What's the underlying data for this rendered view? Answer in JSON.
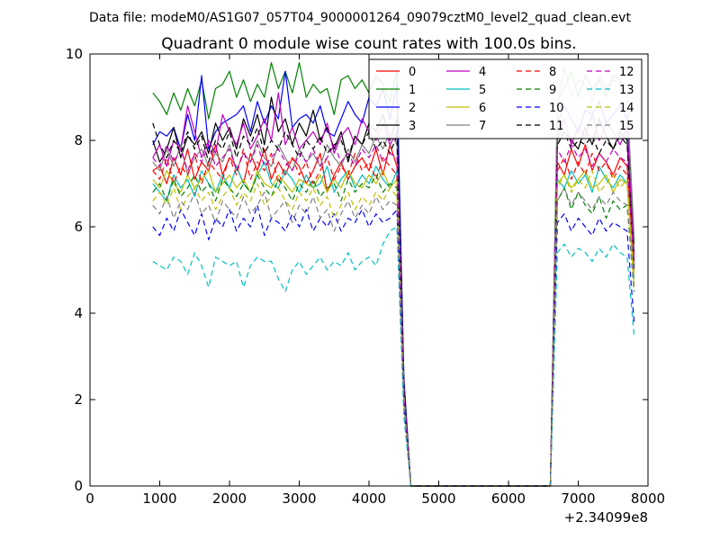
{
  "figure": {
    "suptitle": "Data file: modeM0/AS1G07_057T04_9000001264_09079cztM0_level2_quad_clean.evt",
    "title": "Quadrant 0 module wise count rates with 100.0s bins.",
    "x_offset_label": "+2.34099e8"
  },
  "chart_data": {
    "type": "line",
    "title": "Quadrant 0 module wise count rates with 100.0s bins.",
    "xlabel": "",
    "ylabel": "",
    "xlim": [
      0,
      8000
    ],
    "ylim": [
      0,
      10
    ],
    "x_offset": 234099000,
    "xticks": [
      0,
      1000,
      2000,
      3000,
      4000,
      5000,
      6000,
      7000,
      8000
    ],
    "yticks": [
      0,
      2,
      4,
      6,
      8,
      10
    ],
    "grid": false,
    "legend_position": "top-right",
    "x": [
      900,
      1000,
      1100,
      1200,
      1300,
      1400,
      1500,
      1600,
      1700,
      1800,
      1900,
      2000,
      2100,
      2200,
      2300,
      2400,
      2500,
      2600,
      2700,
      2800,
      2900,
      3000,
      3100,
      3200,
      3300,
      3400,
      3500,
      3600,
      3700,
      3800,
      3900,
      4000,
      4100,
      4200,
      4300,
      4400,
      4500,
      4600,
      4700,
      4800,
      4900,
      5000,
      5100,
      5200,
      5300,
      5400,
      5500,
      5600,
      5700,
      5800,
      5900,
      6000,
      6100,
      6200,
      6300,
      6400,
      6500,
      6600,
      6700,
      6800,
      6900,
      7000,
      7100,
      7200,
      7300,
      7400,
      7500,
      7600,
      7700,
      7800
    ],
    "series": [
      {
        "name": "0",
        "color": "#ff0000",
        "dash": "solid",
        "values": [
          7.3,
          7.4,
          7.0,
          7.6,
          7.2,
          7.8,
          7.1,
          7.5,
          7.3,
          7.9,
          7.2,
          7.6,
          7.4,
          7.0,
          7.7,
          7.3,
          7.8,
          7.1,
          7.5,
          7.2,
          7.6,
          7.4,
          7.0,
          7.3,
          7.7,
          6.8,
          7.2,
          7.5,
          7.1,
          7.4,
          7.6,
          7.3,
          7.8,
          7.2,
          7.9,
          7.4,
          2.0,
          0,
          0,
          0,
          0,
          0,
          0,
          0,
          0,
          0,
          0,
          0,
          0,
          0,
          0,
          0,
          0,
          0,
          0,
          0,
          0,
          0,
          7.5,
          7.2,
          7.8,
          7.4,
          7.9,
          7.3,
          7.7,
          7.5,
          7.2,
          7.6,
          7.4,
          5.2
        ]
      },
      {
        "name": "1",
        "color": "#008000",
        "dash": "solid",
        "values": [
          9.1,
          8.9,
          8.6,
          9.1,
          8.7,
          9.2,
          8.8,
          9.4,
          8.5,
          9.2,
          9.3,
          9.6,
          9.0,
          9.4,
          8.9,
          9.3,
          9.0,
          9.8,
          9.2,
          9.6,
          9.1,
          9.8,
          9.0,
          9.3,
          9.1,
          9.2,
          8.6,
          9.4,
          9.5,
          9.2,
          9.4,
          9.1,
          9.5,
          9.3,
          8.9,
          9.6,
          2.4,
          0,
          0,
          0,
          0,
          0,
          0,
          0,
          0,
          0,
          0,
          0,
          0,
          0,
          0,
          0,
          0,
          0,
          0,
          0,
          0,
          0,
          8.9,
          9.2,
          9.6,
          9.0,
          9.5,
          9.2,
          9.4,
          9.0,
          9.5,
          9.4,
          9.0,
          5.6
        ]
      },
      {
        "name": "2",
        "color": "#0000ff",
        "dash": "solid",
        "values": [
          7.9,
          8.2,
          8.1,
          8.3,
          7.8,
          8.6,
          8.0,
          9.5,
          7.8,
          8.2,
          8.4,
          8.5,
          8.6,
          8.8,
          8.2,
          8.9,
          8.4,
          8.8,
          8.5,
          9.6,
          8.3,
          8.5,
          8.6,
          8.4,
          8.8,
          8.2,
          8.1,
          8.5,
          8.9,
          8.6,
          8.4,
          9.0,
          8.8,
          9.2,
          8.5,
          9.3,
          2.5,
          0,
          0,
          0,
          0,
          0,
          0,
          0,
          0,
          0,
          0,
          0,
          0,
          0,
          0,
          0,
          0,
          0,
          0,
          0,
          0,
          0,
          8.4,
          8.8,
          8.5,
          8.2,
          8.7,
          8.6,
          8.9,
          8.4,
          8.6,
          8.8,
          8.5,
          5.0
        ]
      },
      {
        "name": "3",
        "color": "#000000",
        "dash": "solid",
        "values": [
          8.0,
          7.5,
          7.8,
          8.3,
          7.6,
          8.1,
          7.9,
          8.2,
          7.7,
          8.4,
          8.0,
          8.3,
          7.8,
          8.5,
          8.1,
          8.6,
          7.9,
          9.0,
          8.2,
          8.5,
          7.9,
          8.4,
          8.1,
          8.7,
          8.0,
          8.3,
          7.8,
          8.2,
          7.5,
          8.1,
          7.9,
          8.4,
          8.2,
          8.6,
          8.0,
          8.5,
          2.3,
          0,
          0,
          0,
          0,
          0,
          0,
          0,
          0,
          0,
          0,
          0,
          0,
          0,
          0,
          0,
          0,
          0,
          0,
          0,
          0,
          0,
          7.9,
          8.2,
          8.0,
          7.8,
          8.3,
          7.9,
          8.5,
          8.1,
          7.8,
          8.2,
          8.0,
          5.4
        ]
      },
      {
        "name": "4",
        "color": "#bf00bf",
        "dash": "solid",
        "values": [
          7.6,
          7.9,
          7.4,
          8.0,
          7.8,
          8.8,
          8.2,
          7.6,
          8.0,
          7.7,
          8.6,
          8.2,
          7.9,
          8.4,
          7.8,
          8.1,
          8.5,
          8.0,
          9.1,
          7.9,
          8.3,
          7.8,
          8.0,
          8.2,
          7.9,
          8.4,
          7.7,
          8.1,
          8.3,
          7.9,
          8.5,
          8.2,
          8.0,
          8.4,
          7.9,
          8.2,
          2.2,
          0,
          0,
          0,
          0,
          0,
          0,
          0,
          0,
          0,
          0,
          0,
          0,
          0,
          0,
          0,
          0,
          0,
          0,
          0,
          0,
          0,
          8.0,
          8.5,
          7.9,
          8.3,
          8.1,
          8.6,
          8.0,
          8.4,
          8.2,
          7.9,
          8.3,
          5.3
        ]
      },
      {
        "name": "5",
        "color": "#00bfbf",
        "dash": "solid",
        "values": [
          7.0,
          6.8,
          6.6,
          7.2,
          6.9,
          7.1,
          6.7,
          7.3,
          7.0,
          6.8,
          7.2,
          6.9,
          7.4,
          7.0,
          6.8,
          7.2,
          7.5,
          7.0,
          6.9,
          7.3,
          7.1,
          6.8,
          7.2,
          6.9,
          7.0,
          7.4,
          6.8,
          7.1,
          7.3,
          6.9,
          7.2,
          7.0,
          7.4,
          7.1,
          6.9,
          7.3,
          2.1,
          0,
          0,
          0,
          0,
          0,
          0,
          0,
          0,
          0,
          0,
          0,
          0,
          0,
          0,
          0,
          0,
          0,
          0,
          0,
          0,
          0,
          7.1,
          6.9,
          7.3,
          7.0,
          7.2,
          6.8,
          7.4,
          7.1,
          6.9,
          7.2,
          7.0,
          4.8
        ]
      },
      {
        "name": "6",
        "color": "#bfbf00",
        "dash": "solid",
        "values": [
          7.1,
          6.9,
          7.3,
          7.0,
          6.8,
          7.2,
          6.9,
          7.1,
          7.3,
          6.8,
          7.0,
          7.2,
          6.9,
          7.1,
          6.8,
          7.3,
          7.0,
          6.9,
          7.2,
          7.0,
          6.8,
          7.1,
          7.0,
          6.9,
          7.2,
          6.8,
          7.1,
          6.9,
          7.3,
          7.0,
          6.9,
          7.2,
          7.0,
          7.3,
          6.9,
          7.1,
          2.0,
          0,
          0,
          0,
          0,
          0,
          0,
          0,
          0,
          0,
          0,
          0,
          0,
          0,
          0,
          0,
          0,
          0,
          0,
          0,
          0,
          0,
          7.0,
          7.2,
          6.9,
          7.1,
          7.3,
          6.9,
          7.0,
          7.2,
          6.8,
          7.1,
          7.0,
          4.6
        ]
      },
      {
        "name": "7",
        "color": "#808080",
        "dash": "solid",
        "values": [
          7.5,
          7.3,
          7.8,
          7.4,
          7.9,
          7.2,
          7.6,
          7.8,
          7.4,
          7.7,
          7.5,
          7.9,
          7.3,
          7.7,
          7.5,
          8.0,
          7.6,
          7.4,
          7.9,
          7.6,
          7.3,
          7.8,
          7.5,
          7.7,
          7.4,
          7.9,
          7.6,
          7.4,
          7.8,
          7.5,
          7.9,
          7.7,
          8.1,
          7.8,
          8.2,
          7.9,
          2.2,
          0,
          0,
          0,
          0,
          0,
          0,
          0,
          0,
          0,
          0,
          0,
          0,
          0,
          0,
          0,
          0,
          0,
          0,
          0,
          0,
          0,
          8.8,
          9.7,
          9.0,
          9.4,
          9.3,
          8.9,
          9.5,
          9.2,
          9.4,
          9.3,
          9.0,
          5.8
        ]
      },
      {
        "name": "8",
        "color": "#ff0000",
        "dash": "dash",
        "values": [
          7.3,
          7.1,
          7.6,
          7.0,
          7.4,
          7.2,
          7.7,
          7.0,
          7.5,
          7.3,
          7.1,
          7.6,
          7.2,
          7.8,
          7.1,
          7.5,
          7.3,
          7.7,
          7.0,
          7.4,
          7.6,
          7.2,
          7.5,
          7.0,
          7.3,
          7.6,
          7.1,
          7.4,
          7.2,
          7.7,
          7.3,
          7.5,
          7.1,
          7.6,
          7.4,
          7.2,
          2.1,
          0,
          0,
          0,
          0,
          0,
          0,
          0,
          0,
          0,
          0,
          0,
          0,
          0,
          0,
          0,
          0,
          0,
          0,
          0,
          0,
          0,
          7.3,
          7.6,
          7.1,
          7.5,
          7.2,
          7.7,
          7.3,
          7.5,
          7.1,
          7.4,
          7.2,
          5.0
        ]
      },
      {
        "name": "9",
        "color": "#008000",
        "dash": "dash",
        "values": [
          6.8,
          7.0,
          6.6,
          7.1,
          6.7,
          6.9,
          7.2,
          6.8,
          7.0,
          6.6,
          7.1,
          6.9,
          6.7,
          7.0,
          6.8,
          7.2,
          6.9,
          6.7,
          7.1,
          6.9,
          6.6,
          7.0,
          6.8,
          7.1,
          6.7,
          6.9,
          7.0,
          6.6,
          7.1,
          6.8,
          7.0,
          6.9,
          7.2,
          6.8,
          7.0,
          6.9,
          2.0,
          0,
          0,
          0,
          0,
          0,
          0,
          0,
          0,
          0,
          0,
          0,
          0,
          0,
          0,
          0,
          0,
          0,
          0,
          0,
          0,
          0,
          6.6,
          6.9,
          6.4,
          6.8,
          6.5,
          6.3,
          6.7,
          6.2,
          6.6,
          6.4,
          6.5,
          4.5
        ]
      },
      {
        "name": "10",
        "color": "#0000ff",
        "dash": "dash",
        "values": [
          6.0,
          5.8,
          6.2,
          5.9,
          6.4,
          6.1,
          5.8,
          6.3,
          5.7,
          6.2,
          6.0,
          6.4,
          5.9,
          6.2,
          6.0,
          6.5,
          5.8,
          6.2,
          6.1,
          5.9,
          6.3,
          6.0,
          6.4,
          5.9,
          6.2,
          6.0,
          6.3,
          5.9,
          6.2,
          6.1,
          6.4,
          6.0,
          6.3,
          6.1,
          6.2,
          6.4,
          1.8,
          0,
          0,
          0,
          0,
          0,
          0,
          0,
          0,
          0,
          0,
          0,
          0,
          0,
          0,
          0,
          0,
          0,
          0,
          0,
          0,
          0,
          6.1,
          6.3,
          5.9,
          6.2,
          6.0,
          5.8,
          6.2,
          5.9,
          6.1,
          6.0,
          5.9,
          3.8
        ]
      },
      {
        "name": "11",
        "color": "#000000",
        "dash": "dash",
        "values": [
          8.4,
          7.9,
          7.6,
          8.0,
          7.7,
          8.2,
          7.8,
          8.1,
          7.5,
          8.0,
          7.8,
          8.2,
          7.6,
          8.1,
          7.9,
          8.3,
          7.7,
          8.0,
          7.8,
          8.2,
          7.9,
          7.6,
          8.0,
          7.8,
          8.1,
          7.7,
          7.9,
          8.0,
          7.6,
          8.1,
          7.9,
          8.2,
          7.8,
          8.0,
          7.7,
          8.1,
          2.2,
          0,
          0,
          0,
          0,
          0,
          0,
          0,
          0,
          0,
          0,
          0,
          0,
          0,
          0,
          0,
          0,
          0,
          0,
          0,
          0,
          0,
          7.9,
          8.2,
          7.8,
          8.0,
          7.9,
          8.1,
          7.7,
          8.0,
          7.8,
          8.1,
          7.9,
          5.1
        ]
      },
      {
        "name": "12",
        "color": "#bf00bf",
        "dash": "dash",
        "values": [
          7.6,
          7.4,
          7.9,
          7.5,
          7.8,
          7.3,
          7.7,
          7.5,
          7.9,
          7.4,
          7.6,
          7.8,
          7.3,
          7.7,
          7.5,
          7.9,
          7.4,
          7.6,
          7.8,
          7.5,
          7.3,
          7.7,
          7.5,
          7.8,
          7.4,
          7.6,
          7.9,
          7.5,
          7.7,
          7.4,
          7.8,
          7.6,
          7.9,
          7.5,
          7.7,
          7.6,
          2.1,
          0,
          0,
          0,
          0,
          0,
          0,
          0,
          0,
          0,
          0,
          0,
          0,
          0,
          0,
          0,
          0,
          0,
          0,
          0,
          0,
          0,
          7.8,
          7.5,
          7.9,
          7.6,
          7.8,
          7.4,
          7.7,
          7.5,
          7.8,
          7.6,
          7.5,
          5.2
        ]
      },
      {
        "name": "13",
        "color": "#00bfbf",
        "dash": "dash",
        "values": [
          5.2,
          5.1,
          5.0,
          5.3,
          5.2,
          4.9,
          5.4,
          5.1,
          4.6,
          5.3,
          5.2,
          5.1,
          5.2,
          4.6,
          5.1,
          5.3,
          5.2,
          5.2,
          4.8,
          4.5,
          5.0,
          5.2,
          4.9,
          5.1,
          5.3,
          5.0,
          5.2,
          5.1,
          5.4,
          5.0,
          5.2,
          5.3,
          5.1,
          5.6,
          5.9,
          6.0,
          1.6,
          0,
          0,
          0,
          0,
          0,
          0,
          0,
          0,
          0,
          0,
          0,
          0,
          0,
          0,
          0,
          0,
          0,
          0,
          0,
          0,
          0,
          5.4,
          5.6,
          5.3,
          5.5,
          5.4,
          5.2,
          5.5,
          5.3,
          5.6,
          5.4,
          5.3,
          3.5
        ]
      },
      {
        "name": "14",
        "color": "#bfbf00",
        "dash": "dash",
        "values": [
          6.6,
          6.8,
          6.5,
          6.9,
          6.4,
          6.7,
          6.9,
          6.6,
          6.8,
          6.4,
          6.7,
          6.9,
          6.5,
          6.8,
          6.6,
          7.0,
          6.5,
          6.7,
          6.9,
          6.6,
          6.4,
          6.8,
          6.6,
          6.9,
          6.5,
          6.7,
          6.2,
          6.5,
          6.8,
          6.4,
          6.7,
          6.5,
          6.8,
          6.6,
          6.9,
          6.7,
          1.9,
          0,
          0,
          0,
          0,
          0,
          0,
          0,
          0,
          0,
          0,
          0,
          0,
          0,
          0,
          0,
          0,
          0,
          0,
          0,
          0,
          0,
          6.9,
          7.2,
          6.8,
          7.1,
          6.9,
          7.3,
          6.8,
          7.0,
          7.2,
          6.9,
          7.1,
          4.9
        ]
      },
      {
        "name": "15",
        "color": "#808080",
        "dash": "dash",
        "values": [
          6.5,
          6.3,
          6.7,
          6.2,
          6.6,
          6.4,
          6.8,
          6.3,
          6.5,
          6.1,
          6.6,
          6.4,
          6.2,
          6.7,
          6.3,
          6.5,
          6.8,
          6.2,
          6.4,
          6.6,
          6.1,
          6.5,
          6.3,
          6.7,
          6.2,
          6.4,
          5.9,
          6.3,
          6.6,
          6.2,
          6.5,
          6.3,
          6.7,
          6.4,
          6.6,
          6.5,
          1.9,
          0,
          0,
          0,
          0,
          0,
          0,
          0,
          0,
          0,
          0,
          0,
          0,
          0,
          0,
          0,
          0,
          0,
          0,
          0,
          0,
          0,
          6.6,
          6.9,
          6.5,
          6.8,
          6.6,
          6.4,
          6.7,
          6.5,
          6.8,
          6.6,
          6.5,
          4.6
        ]
      }
    ]
  }
}
